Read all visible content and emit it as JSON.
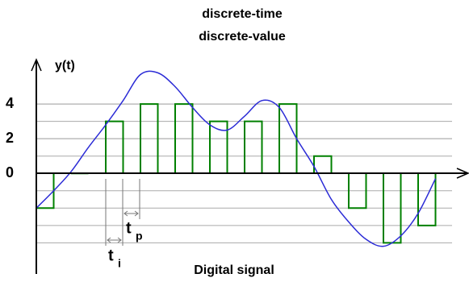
{
  "chart_data": {
    "type": "bar",
    "title": "discrete-time",
    "subtitle": "discrete-value",
    "ylabel": "y(t)",
    "caption": "Digital signal",
    "annotations": [
      {
        "text": "t",
        "sub": "i"
      },
      {
        "text": "t",
        "sub": "p"
      }
    ],
    "color": "#008000",
    "curve_color": "#2b2bd6",
    "values": [
      -2,
      0,
      3,
      4,
      4,
      3,
      3,
      4,
      1,
      -2,
      -4,
      -3
    ],
    "curve": {
      "x": [
        0,
        0.5,
        1,
        1.5,
        2,
        2.5,
        3,
        3.5,
        4,
        4.5,
        5,
        5.5,
        6,
        6.5,
        7,
        7.5,
        8,
        8.5,
        9,
        9.5,
        10,
        10.5,
        11,
        11.5
      ],
      "y": [
        -2,
        -1,
        0.1,
        1.5,
        2.8,
        4.2,
        5.7,
        5.8,
        5,
        3.8,
        2.8,
        2.5,
        3.3,
        4.2,
        3.8,
        2,
        0.4,
        -1.5,
        -2.8,
        -3.8,
        -4.2,
        -3.6,
        -2.3,
        -0.3
      ]
    },
    "xlim": [
      0,
      12.2
    ],
    "ylim": [
      -5.8,
      6.5
    ],
    "yticks": [
      0,
      2,
      4
    ],
    "gridlines": [
      -4,
      -3,
      -2,
      -1,
      1,
      2,
      3,
      4
    ],
    "grid": true
  }
}
